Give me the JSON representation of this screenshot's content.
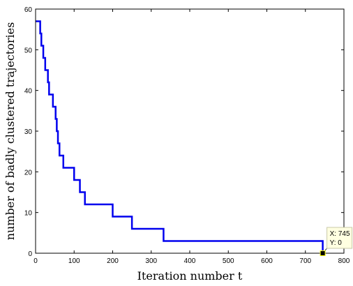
{
  "chart_data": {
    "type": "line",
    "xlabel": "Iteration number t",
    "ylabel": "number of badly clustered trajectories",
    "xlim": [
      0,
      800
    ],
    "ylim": [
      0,
      60
    ],
    "xticks": [
      0,
      100,
      200,
      300,
      400,
      500,
      600,
      700,
      800
    ],
    "yticks": [
      0,
      10,
      20,
      30,
      40,
      50,
      60
    ],
    "grid": false,
    "series": [
      {
        "color": "#0000ee",
        "step": "post",
        "x": [
          0,
          12,
          15,
          20,
          25,
          32,
          35,
          40,
          45,
          52,
          55,
          58,
          60,
          62,
          65,
          72,
          100,
          110,
          115,
          128,
          200,
          250,
          332,
          745
        ],
        "y": [
          57,
          54,
          51,
          48,
          45,
          42,
          39,
          39,
          36,
          33,
          30,
          27,
          27,
          24,
          24,
          21,
          18,
          18,
          15,
          12,
          9,
          6,
          3,
          0
        ]
      }
    ],
    "datatip": {
      "x_label": "X: 745",
      "y_label": "Y: 0",
      "x": 745,
      "y": 0
    }
  }
}
